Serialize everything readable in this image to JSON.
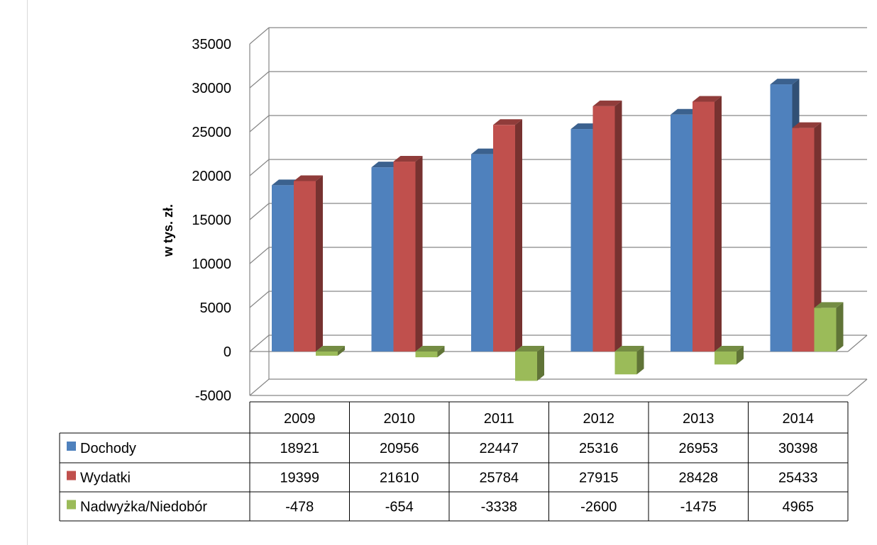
{
  "chart_data": {
    "type": "bar",
    "ylabel": "w tys. zł.",
    "ylim": [
      -5000,
      35000
    ],
    "yticks": [
      "35000",
      "30000",
      "25000",
      "20000",
      "15000",
      "10000",
      "5000",
      "0",
      "-5000"
    ],
    "categories": [
      "2009",
      "2010",
      "2011",
      "2012",
      "2013",
      "2014"
    ],
    "series": [
      {
        "name": "Dochody",
        "color": "#4f81bd",
        "values": [
          18921,
          20956,
          22447,
          25316,
          26953,
          30398
        ]
      },
      {
        "name": "Wydatki",
        "color": "#c0504d",
        "values": [
          19399,
          21610,
          25784,
          27915,
          28428,
          25433
        ]
      },
      {
        "name": "Nadwyżka/Niedobór",
        "color": "#9bbb59",
        "values": [
          -478,
          -654,
          -3338,
          -2600,
          -1475,
          4965
        ]
      }
    ],
    "grid": true,
    "legend": "data-table"
  }
}
